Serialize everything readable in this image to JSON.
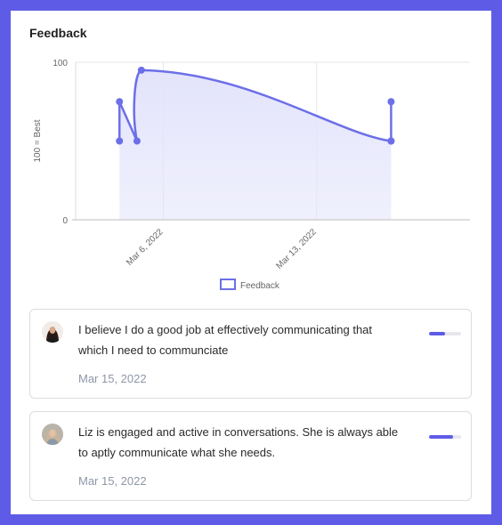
{
  "card": {
    "title": "Feedback"
  },
  "colors": {
    "accent": "#5e5ce6",
    "line": "#6c6fe8",
    "fill": "#e3e4fb"
  },
  "chart_data": {
    "type": "area",
    "title": "",
    "ylabel": "100 = Best",
    "xlabel": "",
    "ylim": [
      0,
      100
    ],
    "yticks": [
      "0",
      "100"
    ],
    "xticks": [
      {
        "label": "Mar 6, 2022",
        "x": "2022-03-06"
      },
      {
        "label": "Mar 13, 2022",
        "x": "2022-03-13"
      }
    ],
    "xlim": [
      "2022-03-02",
      "2022-03-20"
    ],
    "grid": true,
    "legend": {
      "position": "bottom",
      "entries": [
        "Feedback"
      ]
    },
    "series": [
      {
        "name": "Feedback",
        "points": [
          {
            "x": "2022-03-04",
            "y": 50
          },
          {
            "x": "2022-03-04",
            "y": 75
          },
          {
            "x": "2022-03-04.8",
            "y": 50
          },
          {
            "x": "2022-03-05",
            "y": 95
          },
          {
            "x": "2022-03-16.4",
            "y": 50
          },
          {
            "x": "2022-03-16.4",
            "y": 75
          },
          {
            "x": "2022-03-16.4",
            "y": 50
          }
        ]
      }
    ]
  },
  "feedback": [
    {
      "text": "I believe I do a good job at effectively communicating that which I need to communciate",
      "date": "Mar 15, 2022",
      "score": 0.5
    },
    {
      "text": "Liz is engaged and active in conversations. She is always able to aptly communicate what she needs.",
      "date": "Mar 15, 2022",
      "score": 0.75
    }
  ]
}
